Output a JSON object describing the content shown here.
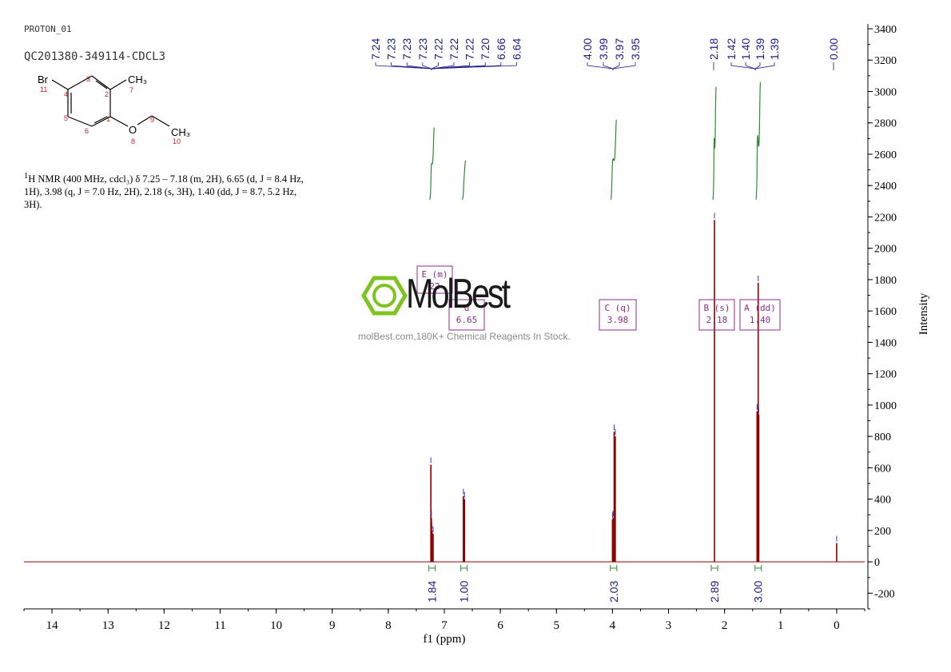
{
  "header": {
    "experiment": "PROTON_01",
    "sample": "QC201380-349114-CDCL3"
  },
  "nmr_description": {
    "sup": "1",
    "lines": [
      "H NMR (400 MHz, cdcl₃) δ 7.25 – 7.18 (m, 2H), 6.65 (d, J = 8.4 Hz,",
      "1H), 3.98 (q, J = 7.0 Hz, 2H), 2.18 (s, 3H), 1.40 (dd, J = 8.7, 5.2 Hz,",
      "3H)."
    ]
  },
  "molecule": {
    "atoms": [
      "Br",
      "CH₃",
      "O",
      "CH₃"
    ],
    "numbers": [
      "11",
      "4",
      "3",
      "2",
      "7",
      "1",
      "5",
      "6",
      "8",
      "9",
      "10"
    ]
  },
  "watermark": {
    "brand": "MolBest",
    "caption": "molBest.com,180K+ Chemical Reagents In Stock."
  },
  "colors": {
    "spectrum": "#8b0000",
    "integral": "#2e8b2e",
    "peak_label": "#1a1a8c",
    "multiplet_box": "#8e2b8e",
    "logo_green": "#7ec320"
  },
  "chart_data": {
    "type": "line",
    "xlabel": "f1 (ppm)",
    "ylabel": "Intensity",
    "xlim": [
      14.5,
      -0.5
    ],
    "ylim": [
      -300,
      3400
    ],
    "x_ticks": [
      14,
      13,
      12,
      11,
      10,
      9,
      8,
      7,
      6,
      5,
      4,
      3,
      2,
      1,
      0
    ],
    "y_ticks": [
      -200,
      0,
      200,
      400,
      600,
      800,
      1000,
      1200,
      1400,
      1600,
      1800,
      2000,
      2200,
      2400,
      2600,
      2800,
      3000,
      3200,
      3400
    ],
    "peaks": [
      {
        "ppm": 7.24,
        "height": 620
      },
      {
        "ppm": 7.23,
        "height": 280
      },
      {
        "ppm": 7.22,
        "height": 200
      },
      {
        "ppm": 7.2,
        "height": 180
      },
      {
        "ppm": 6.66,
        "height": 420
      },
      {
        "ppm": 6.64,
        "height": 400
      },
      {
        "ppm": 4.0,
        "height": 270
      },
      {
        "ppm": 3.99,
        "height": 280
      },
      {
        "ppm": 3.97,
        "height": 830
      },
      {
        "ppm": 3.95,
        "height": 800
      },
      {
        "ppm": 2.18,
        "height": 2180
      },
      {
        "ppm": 1.42,
        "height": 960
      },
      {
        "ppm": 1.4,
        "height": 1780
      },
      {
        "ppm": 1.39,
        "height": 940
      },
      {
        "ppm": 0.0,
        "height": 120
      }
    ],
    "peak_labels": {
      "group1": [
        "7.24",
        "7.23",
        "7.23",
        "7.23",
        "7.22",
        "7.22",
        "7.22",
        "7.20",
        "6.66",
        "6.64"
      ],
      "group2": [
        "4.00",
        "3.99",
        "3.97",
        "3.95"
      ],
      "group3": [
        "2.18"
      ],
      "group4": [
        "1.42",
        "1.40",
        "1.39",
        "1.39"
      ],
      "group5": [
        "0.00"
      ]
    },
    "integrals": [
      {
        "ppm": 7.22,
        "value": "1.84"
      },
      {
        "ppm": 6.65,
        "value": "1.00"
      },
      {
        "ppm": 3.98,
        "value": "2.03"
      },
      {
        "ppm": 2.18,
        "value": "2.89"
      },
      {
        "ppm": 1.4,
        "value": "3.00"
      }
    ],
    "multiplets": [
      {
        "label": "E (m)",
        "shift": "22"
      },
      {
        "label": "d",
        "shift": "6.65"
      },
      {
        "label": "C (q)",
        "shift": "3.98"
      },
      {
        "label": "B (s)",
        "shift": "2.18"
      },
      {
        "label": "A (dd)",
        "shift": "1.40"
      }
    ]
  }
}
